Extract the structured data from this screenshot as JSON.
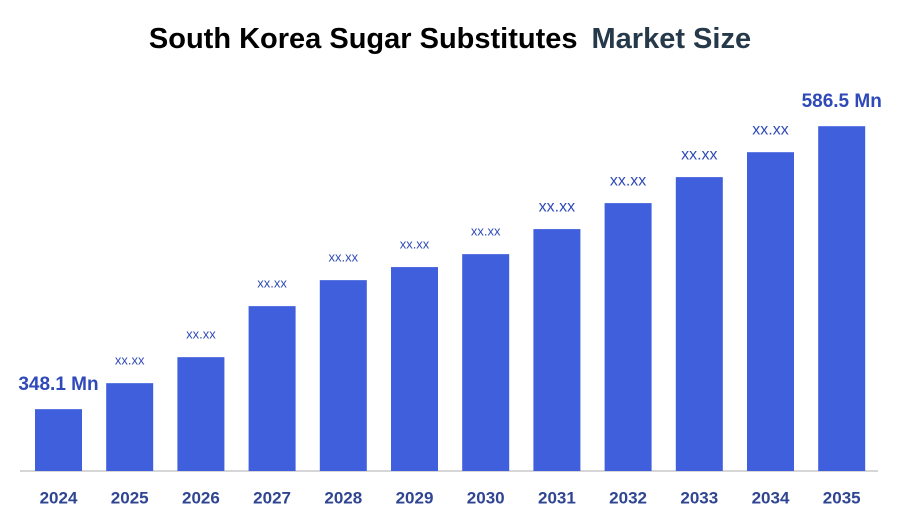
{
  "chart_data": {
    "type": "bar",
    "title": [
      "South Korea Sugar Substitutes",
      "Market Size"
    ],
    "categories": [
      "2024",
      "2025",
      "2026",
      "2027",
      "2028",
      "2029",
      "2030",
      "2031",
      "2032",
      "2033",
      "2034",
      "2035"
    ],
    "values": [
      348.1,
      370.0,
      391.9,
      434.9,
      456.8,
      467.8,
      478.7,
      499.8,
      521.7,
      543.6,
      564.6,
      586.5
    ],
    "value_labels": [
      "348.1 Mn",
      "xx.xx",
      "xx.xx",
      "xx.xx",
      "xx.xx",
      "xx.xx",
      "xx.xx",
      "xx.xx",
      "xx.xx",
      "xx.xx",
      "xx.xx",
      "586.5 Mn"
    ],
    "color": "#3f5fdc",
    "ylim": [
      296,
      617
    ]
  }
}
